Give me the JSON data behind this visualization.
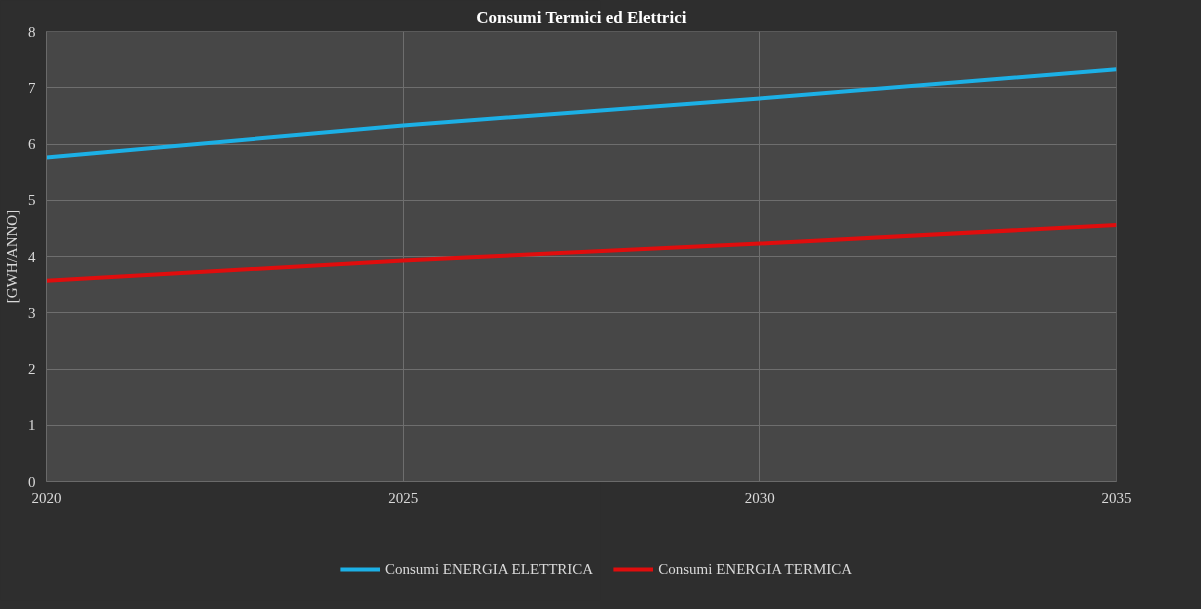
{
  "chart_data": {
    "type": "line",
    "title": "Consumi Termici ed Elettrici",
    "ylabel": "[GWH/ANNO]",
    "x": [
      2020,
      2025,
      2030,
      2035
    ],
    "series": [
      {
        "name": "Consumi ENERGIA ELETTRICA",
        "color": "#1cb0e6",
        "values": [
          5.76,
          6.33,
          6.81,
          7.33
        ]
      },
      {
        "name": "Consumi ENERGIA TERMICA",
        "color": "#e00d0d",
        "values": [
          3.57,
          3.93,
          4.23,
          4.56
        ]
      }
    ],
    "xlim": [
      2020,
      2035
    ],
    "xticks": [
      2020,
      2025,
      2030,
      2035
    ],
    "ylim": [
      0,
      8
    ],
    "yticks": [
      0,
      1,
      2,
      3,
      4,
      5,
      6,
      7,
      8
    ],
    "grid": true,
    "legend": "bottom",
    "marker": "none",
    "line_style": "solid"
  }
}
